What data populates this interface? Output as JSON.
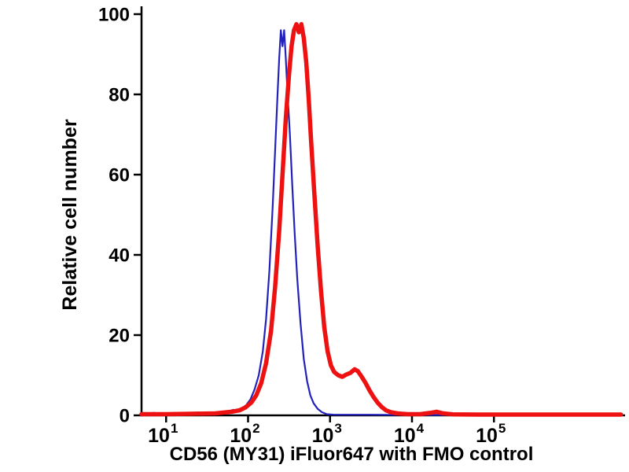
{
  "figure": {
    "background": "#ffffff",
    "axis_color": "#000000"
  },
  "chart_data": {
    "type": "line",
    "subtype": "flow-cytometry-histogram",
    "title": "",
    "xlabel": "CD56 (MY31) iFluor647 with FMO control",
    "ylabel": "Relative cell number",
    "x_scale": "log10",
    "x_log_range": [
      0.7,
      6.6
    ],
    "ylim": [
      0,
      100
    ],
    "grid": false,
    "legend": "none",
    "y_ticks": [
      0,
      20,
      40,
      60,
      80,
      100
    ],
    "x_ticks": [
      {
        "log": 1,
        "base": "10",
        "exp": "1"
      },
      {
        "log": 2,
        "base": "10",
        "exp": "2"
      },
      {
        "log": 3,
        "base": "10",
        "exp": "3"
      },
      {
        "log": 4,
        "base": "10",
        "exp": "4"
      },
      {
        "log": 5,
        "base": "10",
        "exp": "5"
      }
    ],
    "series": [
      {
        "id": "fmo-control",
        "name": "FMO control",
        "color": "#2222bb",
        "width": 2.2,
        "points": [
          [
            0.7,
            0.4
          ],
          [
            0.85,
            0.6
          ],
          [
            1.0,
            0.3
          ],
          [
            1.15,
            0.5
          ],
          [
            1.3,
            0.2
          ],
          [
            1.45,
            0.4
          ],
          [
            1.55,
            0.7
          ],
          [
            1.65,
            0.4
          ],
          [
            1.75,
            0.9
          ],
          [
            1.82,
            1.4
          ],
          [
            1.88,
            1.0
          ],
          [
            1.93,
            1.8
          ],
          [
            1.98,
            2.6
          ],
          [
            2.03,
            4.0
          ],
          [
            2.08,
            6.5
          ],
          [
            2.13,
            10
          ],
          [
            2.18,
            16
          ],
          [
            2.22,
            24
          ],
          [
            2.26,
            36
          ],
          [
            2.3,
            52
          ],
          [
            2.33,
            66
          ],
          [
            2.36,
            80
          ],
          [
            2.38,
            89
          ],
          [
            2.4,
            96
          ],
          [
            2.42,
            92
          ],
          [
            2.44,
            96
          ],
          [
            2.46,
            89
          ],
          [
            2.48,
            81
          ],
          [
            2.51,
            70
          ],
          [
            2.54,
            57
          ],
          [
            2.57,
            45
          ],
          [
            2.6,
            34
          ],
          [
            2.64,
            23
          ],
          [
            2.68,
            14
          ],
          [
            2.72,
            8.5
          ],
          [
            2.76,
            5
          ],
          [
            2.8,
            3
          ],
          [
            2.85,
            1.6
          ],
          [
            2.9,
            0.8
          ],
          [
            2.96,
            0.3
          ],
          [
            3.05,
            0.15
          ],
          [
            3.5,
            0.15
          ],
          [
            4.0,
            0.1
          ],
          [
            5.0,
            0.1
          ],
          [
            6.55,
            0.1
          ]
        ]
      },
      {
        "id": "cd56-ifluor647",
        "name": "CD56 (MY31) iFluor647",
        "color": "#ee1111",
        "width": 5.5,
        "points": [
          [
            0.7,
            0.3
          ],
          [
            1.0,
            0.3
          ],
          [
            1.3,
            0.4
          ],
          [
            1.6,
            0.5
          ],
          [
            1.8,
            0.9
          ],
          [
            1.9,
            1.3
          ],
          [
            1.97,
            2.0
          ],
          [
            2.04,
            3.2
          ],
          [
            2.1,
            5.0
          ],
          [
            2.16,
            8.0
          ],
          [
            2.22,
            13
          ],
          [
            2.28,
            21
          ],
          [
            2.33,
            32
          ],
          [
            2.38,
            46
          ],
          [
            2.42,
            60
          ],
          [
            2.46,
            74
          ],
          [
            2.5,
            85
          ],
          [
            2.53,
            92
          ],
          [
            2.56,
            96
          ],
          [
            2.59,
            97.5
          ],
          [
            2.62,
            95.5
          ],
          [
            2.65,
            97.5
          ],
          [
            2.68,
            94
          ],
          [
            2.71,
            88
          ],
          [
            2.74,
            79
          ],
          [
            2.77,
            68
          ],
          [
            2.81,
            55
          ],
          [
            2.85,
            42
          ],
          [
            2.89,
            31
          ],
          [
            2.93,
            22
          ],
          [
            2.97,
            16
          ],
          [
            3.01,
            12.5
          ],
          [
            3.05,
            10.8
          ],
          [
            3.1,
            10.0
          ],
          [
            3.15,
            9.6
          ],
          [
            3.2,
            10.2
          ],
          [
            3.25,
            10.6
          ],
          [
            3.3,
            11.5
          ],
          [
            3.34,
            11.0
          ],
          [
            3.38,
            9.8
          ],
          [
            3.43,
            8.2
          ],
          [
            3.48,
            6.3
          ],
          [
            3.53,
            4.6
          ],
          [
            3.58,
            3.2
          ],
          [
            3.63,
            2.1
          ],
          [
            3.68,
            1.3
          ],
          [
            3.74,
            0.8
          ],
          [
            3.82,
            0.5
          ],
          [
            3.95,
            0.3
          ],
          [
            4.1,
            0.3
          ],
          [
            4.22,
            0.6
          ],
          [
            4.3,
            0.9
          ],
          [
            4.38,
            0.5
          ],
          [
            4.5,
            0.25
          ],
          [
            4.8,
            0.2
          ],
          [
            5.2,
            0.2
          ],
          [
            5.8,
            0.2
          ],
          [
            6.55,
            0.2
          ]
        ]
      }
    ]
  }
}
